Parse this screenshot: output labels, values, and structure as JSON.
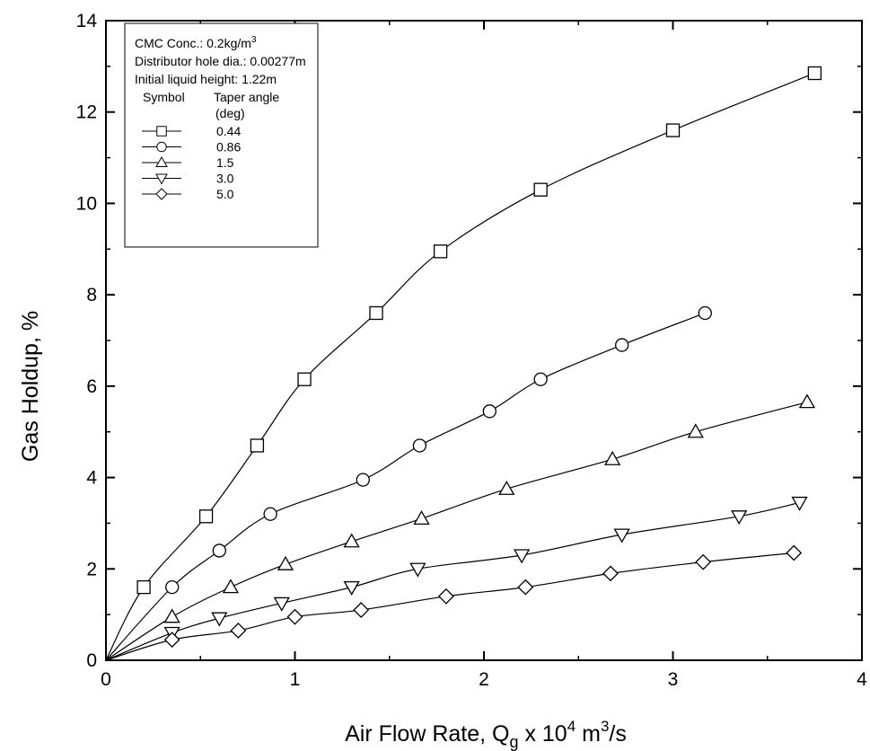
{
  "chart_data": {
    "type": "line",
    "xlabel": {
      "main": "Air Flow Rate, Q",
      "sub": "g",
      "mid": " x 10",
      "sup": "4",
      "unit": " m",
      "sup2": "3",
      "end": "/s"
    },
    "ylabel": "Gas Holdup, %",
    "xlim": [
      0,
      4
    ],
    "ylim": [
      0,
      14
    ],
    "xticks": [
      0,
      1,
      2,
      3,
      4
    ],
    "yticks": [
      0,
      2,
      4,
      6,
      8,
      10,
      12,
      14
    ],
    "legend": {
      "position": "top-left",
      "lines": [
        {
          "text": "CMC Conc.: 0.2kg/m",
          "sup": "3"
        },
        {
          "text": "Distributor hole dia.: 0.00277m"
        },
        {
          "text": "Initial liquid height: 1.22m"
        }
      ],
      "symbol_header": "Symbol",
      "value_header_1": "Taper angle",
      "value_header_2": "(deg)"
    },
    "series": [
      {
        "name": "0.44",
        "marker": "square",
        "x": [
          0.2,
          0.53,
          0.8,
          1.05,
          1.43,
          1.77,
          2.3,
          3.0,
          3.75
        ],
        "y": [
          1.6,
          3.15,
          4.7,
          6.15,
          7.6,
          8.95,
          10.3,
          11.6,
          12.85
        ]
      },
      {
        "name": "0.86",
        "marker": "circle",
        "x": [
          0.35,
          0.6,
          0.87,
          1.36,
          1.66,
          2.03,
          2.3,
          2.73,
          3.17
        ],
        "y": [
          1.6,
          2.4,
          3.2,
          3.95,
          4.7,
          5.45,
          6.15,
          6.9,
          7.6
        ]
      },
      {
        "name": "1.5",
        "marker": "triangle-up",
        "x": [
          0.35,
          0.66,
          0.95,
          1.3,
          1.67,
          2.12,
          2.68,
          3.12,
          3.71
        ],
        "y": [
          0.95,
          1.6,
          2.1,
          2.6,
          3.1,
          3.75,
          4.4,
          5.0,
          5.65
        ]
      },
      {
        "name": "3.0",
        "marker": "triangle-down",
        "x": [
          0.35,
          0.6,
          0.93,
          1.3,
          1.65,
          2.2,
          2.73,
          3.35,
          3.67
        ],
        "y": [
          0.6,
          0.92,
          1.25,
          1.6,
          2.0,
          2.3,
          2.75,
          3.15,
          3.45
        ]
      },
      {
        "name": "5.0",
        "marker": "diamond",
        "x": [
          0.35,
          0.7,
          1.0,
          1.35,
          1.8,
          2.22,
          2.67,
          3.16,
          3.64
        ],
        "y": [
          0.45,
          0.65,
          0.95,
          1.1,
          1.4,
          1.6,
          1.9,
          2.15,
          2.35
        ]
      }
    ]
  }
}
